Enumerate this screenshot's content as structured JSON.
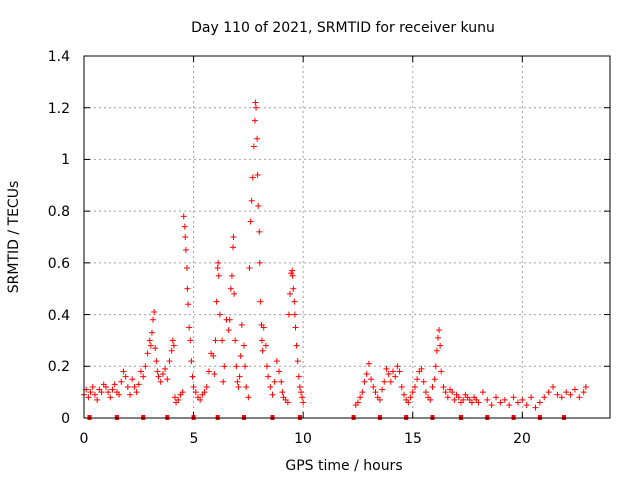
{
  "chart_data": {
    "type": "scatter",
    "title": "Day 110 of 2021, SRMTID for receiver kunu",
    "xlabel": "GPS time / hours",
    "ylabel": "SRMTID / TECUs",
    "xlim": [
      0,
      24
    ],
    "ylim": [
      0,
      1.4
    ],
    "x_ticks": [
      0,
      5,
      10,
      15,
      20
    ],
    "y_ticks": [
      0,
      0.2,
      0.4,
      0.6,
      0.8,
      1,
      1.2,
      1.4
    ],
    "x_tick_labels": [
      "0",
      "5",
      "10",
      "15",
      "20"
    ],
    "y_tick_labels": [
      "0",
      "0.2",
      "0.4",
      "0.6",
      "0.8",
      "1",
      "1.2",
      "1.4"
    ],
    "grid": true,
    "marker": "+",
    "color": "#ff0000",
    "series": [
      {
        "name": "SRMTID",
        "points": [
          [
            0.0,
            0.09
          ],
          [
            0.1,
            0.11
          ],
          [
            0.2,
            0.08
          ],
          [
            0.3,
            0.1
          ],
          [
            0.4,
            0.12
          ],
          [
            0.5,
            0.09
          ],
          [
            0.6,
            0.07
          ],
          [
            0.7,
            0.11
          ],
          [
            0.8,
            0.1
          ],
          [
            0.9,
            0.13
          ],
          [
            1.0,
            0.12
          ],
          [
            1.1,
            0.1
          ],
          [
            1.2,
            0.08
          ],
          [
            1.3,
            0.11
          ],
          [
            1.4,
            0.13
          ],
          [
            1.5,
            0.1
          ],
          [
            1.6,
            0.09
          ],
          [
            1.7,
            0.14
          ],
          [
            1.8,
            0.18
          ],
          [
            1.9,
            0.16
          ],
          [
            2.0,
            0.12
          ],
          [
            2.1,
            0.09
          ],
          [
            2.2,
            0.15
          ],
          [
            2.3,
            0.12
          ],
          [
            2.4,
            0.1
          ],
          [
            2.5,
            0.13
          ],
          [
            2.6,
            0.18
          ],
          [
            2.7,
            0.16
          ],
          [
            2.8,
            0.2
          ],
          [
            2.9,
            0.25
          ],
          [
            3.0,
            0.3
          ],
          [
            3.05,
            0.28
          ],
          [
            3.1,
            0.33
          ],
          [
            3.15,
            0.38
          ],
          [
            3.2,
            0.41
          ],
          [
            3.25,
            0.27
          ],
          [
            3.3,
            0.22
          ],
          [
            3.35,
            0.18
          ],
          [
            3.4,
            0.16
          ],
          [
            3.5,
            0.14
          ],
          [
            3.6,
            0.17
          ],
          [
            3.7,
            0.19
          ],
          [
            3.8,
            0.15
          ],
          [
            3.9,
            0.22
          ],
          [
            4.0,
            0.26
          ],
          [
            4.05,
            0.3
          ],
          [
            4.1,
            0.28
          ],
          [
            4.15,
            0.08
          ],
          [
            4.2,
            0.06
          ],
          [
            4.3,
            0.07
          ],
          [
            4.4,
            0.09
          ],
          [
            4.5,
            0.1
          ],
          [
            4.55,
            0.78
          ],
          [
            4.6,
            0.74
          ],
          [
            4.62,
            0.7
          ],
          [
            4.65,
            0.65
          ],
          [
            4.7,
            0.58
          ],
          [
            4.72,
            0.5
          ],
          [
            4.75,
            0.44
          ],
          [
            4.8,
            0.35
          ],
          [
            4.85,
            0.3
          ],
          [
            4.9,
            0.22
          ],
          [
            4.95,
            0.16
          ],
          [
            5.0,
            0.12
          ],
          [
            5.1,
            0.1
          ],
          [
            5.2,
            0.08
          ],
          [
            5.3,
            0.07
          ],
          [
            5.4,
            0.09
          ],
          [
            5.5,
            0.1
          ],
          [
            5.6,
            0.12
          ],
          [
            5.7,
            0.18
          ],
          [
            5.8,
            0.25
          ],
          [
            5.9,
            0.24
          ],
          [
            5.95,
            0.17
          ],
          [
            6.0,
            0.3
          ],
          [
            6.05,
            0.45
          ],
          [
            6.1,
            0.58
          ],
          [
            6.12,
            0.6
          ],
          [
            6.15,
            0.55
          ],
          [
            6.2,
            0.4
          ],
          [
            6.3,
            0.3
          ],
          [
            6.35,
            0.14
          ],
          [
            6.4,
            0.2
          ],
          [
            6.5,
            0.38
          ],
          [
            6.6,
            0.34
          ],
          [
            6.65,
            0.38
          ],
          [
            6.7,
            0.5
          ],
          [
            6.75,
            0.55
          ],
          [
            6.8,
            0.66
          ],
          [
            6.82,
            0.7
          ],
          [
            6.85,
            0.48
          ],
          [
            6.9,
            0.3
          ],
          [
            6.95,
            0.2
          ],
          [
            7.0,
            0.14
          ],
          [
            7.05,
            0.12
          ],
          [
            7.1,
            0.16
          ],
          [
            7.15,
            0.24
          ],
          [
            7.2,
            0.36
          ],
          [
            7.3,
            0.28
          ],
          [
            7.35,
            0.2
          ],
          [
            7.4,
            0.12
          ],
          [
            7.5,
            0.08
          ],
          [
            7.55,
            0.58
          ],
          [
            7.6,
            0.76
          ],
          [
            7.65,
            0.84
          ],
          [
            7.7,
            0.93
          ],
          [
            7.75,
            1.05
          ],
          [
            7.8,
            1.15
          ],
          [
            7.82,
            1.22
          ],
          [
            7.85,
            1.2
          ],
          [
            7.9,
            1.08
          ],
          [
            7.92,
            0.94
          ],
          [
            7.95,
            0.82
          ],
          [
            8.0,
            0.72
          ],
          [
            8.02,
            0.6
          ],
          [
            8.05,
            0.45
          ],
          [
            8.1,
            0.36
          ],
          [
            8.12,
            0.3
          ],
          [
            8.15,
            0.26
          ],
          [
            8.2,
            0.35
          ],
          [
            8.3,
            0.28
          ],
          [
            8.35,
            0.2
          ],
          [
            8.4,
            0.16
          ],
          [
            8.5,
            0.12
          ],
          [
            8.6,
            0.09
          ],
          [
            8.7,
            0.14
          ],
          [
            8.8,
            0.22
          ],
          [
            8.9,
            0.18
          ],
          [
            9.0,
            0.14
          ],
          [
            9.05,
            0.1
          ],
          [
            9.1,
            0.08
          ],
          [
            9.2,
            0.07
          ],
          [
            9.3,
            0.06
          ],
          [
            9.35,
            0.4
          ],
          [
            9.4,
            0.48
          ],
          [
            9.45,
            0.56
          ],
          [
            9.5,
            0.57
          ],
          [
            9.52,
            0.55
          ],
          [
            9.55,
            0.5
          ],
          [
            9.6,
            0.45
          ],
          [
            9.62,
            0.4
          ],
          [
            9.65,
            0.35
          ],
          [
            9.7,
            0.28
          ],
          [
            9.75,
            0.22
          ],
          [
            9.8,
            0.16
          ],
          [
            9.85,
            0.12
          ],
          [
            9.9,
            0.1
          ],
          [
            9.95,
            0.08
          ],
          [
            10.0,
            0.06
          ],
          [
            12.4,
            0.05
          ],
          [
            12.5,
            0.06
          ],
          [
            12.6,
            0.08
          ],
          [
            12.7,
            0.1
          ],
          [
            12.8,
            0.14
          ],
          [
            12.9,
            0.17
          ],
          [
            13.0,
            0.21
          ],
          [
            13.1,
            0.15
          ],
          [
            13.2,
            0.12
          ],
          [
            13.3,
            0.1
          ],
          [
            13.4,
            0.08
          ],
          [
            13.5,
            0.07
          ],
          [
            13.6,
            0.11
          ],
          [
            13.7,
            0.14
          ],
          [
            13.8,
            0.19
          ],
          [
            13.9,
            0.17
          ],
          [
            14.0,
            0.14
          ],
          [
            14.1,
            0.18
          ],
          [
            14.2,
            0.16
          ],
          [
            14.3,
            0.2
          ],
          [
            14.4,
            0.18
          ],
          [
            14.5,
            0.12
          ],
          [
            14.6,
            0.09
          ],
          [
            14.7,
            0.07
          ],
          [
            14.8,
            0.06
          ],
          [
            14.9,
            0.08
          ],
          [
            15.0,
            0.1
          ],
          [
            15.1,
            0.12
          ],
          [
            15.2,
            0.15
          ],
          [
            15.3,
            0.18
          ],
          [
            15.4,
            0.19
          ],
          [
            15.5,
            0.14
          ],
          [
            15.6,
            0.1
          ],
          [
            15.7,
            0.08
          ],
          [
            15.8,
            0.07
          ],
          [
            15.9,
            0.12
          ],
          [
            16.0,
            0.15
          ],
          [
            16.05,
            0.2
          ],
          [
            16.1,
            0.26
          ],
          [
            16.15,
            0.31
          ],
          [
            16.2,
            0.34
          ],
          [
            16.25,
            0.28
          ],
          [
            16.3,
            0.18
          ],
          [
            16.4,
            0.12
          ],
          [
            16.5,
            0.1
          ],
          [
            16.6,
            0.08
          ],
          [
            16.7,
            0.11
          ],
          [
            16.8,
            0.1
          ],
          [
            16.9,
            0.07
          ],
          [
            17.0,
            0.09
          ],
          [
            17.1,
            0.08
          ],
          [
            17.2,
            0.06
          ],
          [
            17.3,
            0.07
          ],
          [
            17.4,
            0.09
          ],
          [
            17.5,
            0.08
          ],
          [
            17.6,
            0.07
          ],
          [
            17.7,
            0.06
          ],
          [
            17.8,
            0.08
          ],
          [
            17.9,
            0.07
          ],
          [
            18.0,
            0.06
          ],
          [
            18.2,
            0.1
          ],
          [
            18.4,
            0.07
          ],
          [
            18.6,
            0.05
          ],
          [
            18.8,
            0.08
          ],
          [
            19.0,
            0.06
          ],
          [
            19.2,
            0.07
          ],
          [
            19.4,
            0.05
          ],
          [
            19.6,
            0.08
          ],
          [
            19.8,
            0.06
          ],
          [
            20.0,
            0.07
          ],
          [
            20.2,
            0.05
          ],
          [
            20.4,
            0.08
          ],
          [
            20.6,
            0.04
          ],
          [
            20.8,
            0.06
          ],
          [
            21.0,
            0.08
          ],
          [
            21.2,
            0.1
          ],
          [
            21.4,
            0.12
          ],
          [
            21.6,
            0.09
          ],
          [
            21.8,
            0.08
          ],
          [
            22.0,
            0.1
          ],
          [
            22.2,
            0.09
          ],
          [
            22.4,
            0.11
          ],
          [
            22.6,
            0.08
          ],
          [
            22.8,
            0.1
          ],
          [
            22.9,
            0.12
          ]
        ]
      }
    ],
    "gap_markers_x": [
      0.25,
      1.5,
      2.7,
      3.8,
      5.0,
      6.1,
      7.3,
      8.6,
      9.85,
      12.3,
      13.5,
      14.7,
      15.9,
      17.2,
      18.4,
      19.6,
      20.8,
      21.9
    ]
  }
}
